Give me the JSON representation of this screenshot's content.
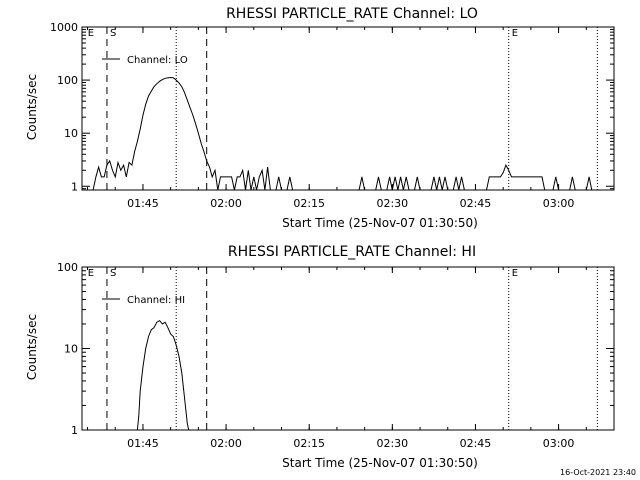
{
  "footer": {
    "timestamp": "16-Oct-2021 23:40"
  },
  "chart_data": [
    {
      "type": "line",
      "title": "RHESSI PARTICLE_RATE Channel: LO",
      "xlabel": "Start Time (25-Nov-07 01:30:50)",
      "ylabel": "Counts/sec",
      "y_scale": "log",
      "xlim": [
        "01:34",
        "03:10"
      ],
      "ylim": [
        0.85,
        1000
      ],
      "x_ticks": [
        "01:45",
        "02:00",
        "02:15",
        "02:30",
        "02:45",
        "03:00"
      ],
      "y_ticks": [
        "1",
        "10",
        "100",
        "1000"
      ],
      "legend": {
        "label": "Channel: LO",
        "placement": "top-left"
      },
      "markers": [
        {
          "label": "E",
          "time": "01:34:30",
          "style": "none"
        },
        {
          "label": "S",
          "time": "01:38:30",
          "style": "dashed"
        },
        {
          "label": "",
          "time": "01:51:00",
          "style": "dotted"
        },
        {
          "label": "",
          "time": "01:56:30",
          "style": "dashed"
        },
        {
          "label": "E",
          "time": "02:51:00",
          "style": "dotted"
        },
        {
          "label": "",
          "time": "03:07:00",
          "style": "dotted"
        }
      ],
      "series": [
        {
          "name": "Channel: LO",
          "points": [
            [
              "01:36:00",
              0.85
            ],
            [
              "01:36:30",
              1.5
            ],
            [
              "01:37:00",
              2.3
            ],
            [
              "01:37:30",
              1.5
            ],
            [
              "01:38:00",
              1.5
            ],
            [
              "01:38:30",
              2.5
            ],
            [
              "01:39:00",
              3.0
            ],
            [
              "01:39:30",
              2.0
            ],
            [
              "01:40:00",
              1.5
            ],
            [
              "01:40:30",
              2.8
            ],
            [
              "01:41:00",
              2.0
            ],
            [
              "01:41:30",
              2.5
            ],
            [
              "01:42:00",
              1.5
            ],
            [
              "01:42:30",
              2.8
            ],
            [
              "01:43:00",
              2.5
            ],
            [
              "01:43:30",
              4.5
            ],
            [
              "01:44:00",
              7.0
            ],
            [
              "01:44:30",
              12.0
            ],
            [
              "01:45:00",
              22.0
            ],
            [
              "01:45:30",
              35.0
            ],
            [
              "01:46:00",
              50.0
            ],
            [
              "01:46:30",
              62.0
            ],
            [
              "01:47:00",
              75.0
            ],
            [
              "01:47:30",
              85.0
            ],
            [
              "01:48:00",
              95.0
            ],
            [
              "01:48:30",
              102.0
            ],
            [
              "01:49:00",
              108.0
            ],
            [
              "01:49:30",
              110.0
            ],
            [
              "01:50:00",
              112.0
            ],
            [
              "01:50:30",
              110.0
            ],
            [
              "01:51:00",
              100.0
            ],
            [
              "01:51:30",
              88.0
            ],
            [
              "01:52:00",
              75.0
            ],
            [
              "01:52:30",
              58.0
            ],
            [
              "01:53:00",
              42.0
            ],
            [
              "01:53:30",
              30.0
            ],
            [
              "01:54:00",
              22.0
            ],
            [
              "01:54:30",
              15.0
            ],
            [
              "01:55:00",
              10.0
            ],
            [
              "01:55:30",
              6.5
            ],
            [
              "01:56:00",
              4.5
            ],
            [
              "01:56:30",
              3.0
            ],
            [
              "01:57:00",
              2.3
            ],
            [
              "01:57:30",
              1.5
            ],
            [
              "01:58:00",
              2.0
            ],
            [
              "01:58:30",
              0.85
            ],
            [
              "01:59:00",
              1.5
            ],
            [
              "01:59:30",
              1.5
            ],
            [
              "02:00:00",
              1.5
            ],
            [
              "02:00:30",
              1.5
            ],
            [
              "02:01:00",
              1.5
            ],
            [
              "02:01:30",
              0.85
            ],
            [
              "02:02:00",
              1.5
            ],
            [
              "02:02:30",
              1.5
            ],
            [
              "02:03:00",
              2.0
            ],
            [
              "02:03:30",
              0.85
            ],
            [
              "02:04:00",
              2.0
            ],
            [
              "02:04:30",
              0.85
            ],
            [
              "02:05:00",
              1.5
            ],
            [
              "02:05:30",
              0.85
            ],
            [
              "02:06:00",
              1.5
            ],
            [
              "02:06:30",
              2.0
            ],
            [
              "02:07:00",
              0.85
            ],
            [
              "02:07:30",
              2.3
            ],
            [
              "02:08:00",
              0.85
            ],
            [
              "02:09:00",
              0.85
            ],
            [
              "02:09:30",
              1.5
            ],
            [
              "02:10:00",
              0.85
            ],
            [
              "02:11:00",
              0.85
            ],
            [
              "02:11:30",
              1.5
            ],
            [
              "02:12:00",
              0.85
            ],
            [
              "02:24:00",
              0.85
            ],
            [
              "02:24:30",
              1.5
            ],
            [
              "02:25:00",
              0.85
            ],
            [
              "02:27:00",
              0.85
            ],
            [
              "02:27:30",
              1.5
            ],
            [
              "02:28:00",
              0.85
            ],
            [
              "02:29:00",
              0.85
            ],
            [
              "02:29:30",
              1.5
            ],
            [
              "02:30:00",
              0.85
            ],
            [
              "02:30:30",
              1.5
            ],
            [
              "02:31:00",
              0.85
            ],
            [
              "02:31:30",
              1.5
            ],
            [
              "02:32:00",
              0.85
            ],
            [
              "02:32:30",
              1.5
            ],
            [
              "02:33:00",
              0.85
            ],
            [
              "02:34:00",
              0.85
            ],
            [
              "02:34:30",
              1.5
            ],
            [
              "02:35:00",
              0.85
            ],
            [
              "02:37:00",
              0.85
            ],
            [
              "02:37:30",
              1.5
            ],
            [
              "02:38:00",
              0.85
            ],
            [
              "02:38:30",
              1.5
            ],
            [
              "02:39:00",
              0.85
            ],
            [
              "02:39:30",
              1.5
            ],
            [
              "02:40:00",
              0.85
            ],
            [
              "02:41:00",
              0.85
            ],
            [
              "02:41:30",
              1.5
            ],
            [
              "02:42:00",
              0.85
            ],
            [
              "02:42:30",
              1.5
            ],
            [
              "02:43:00",
              0.85
            ],
            [
              "02:47:00",
              0.85
            ],
            [
              "02:47:30",
              1.5
            ],
            [
              "02:48:00",
              1.5
            ],
            [
              "02:48:30",
              1.5
            ],
            [
              "02:49:00",
              1.5
            ],
            [
              "02:49:30",
              1.5
            ],
            [
              "02:50:00",
              1.8
            ],
            [
              "02:50:30",
              2.5
            ],
            [
              "02:51:00",
              2.0
            ],
            [
              "02:51:30",
              1.5
            ],
            [
              "02:52:00",
              1.5
            ],
            [
              "02:52:30",
              1.5
            ],
            [
              "02:53:00",
              1.5
            ],
            [
              "02:53:30",
              1.5
            ],
            [
              "02:54:00",
              1.5
            ],
            [
              "02:54:30",
              1.5
            ],
            [
              "02:55:00",
              1.5
            ],
            [
              "02:55:30",
              1.5
            ],
            [
              "02:56:00",
              1.5
            ],
            [
              "02:56:30",
              1.5
            ],
            [
              "02:57:00",
              1.5
            ],
            [
              "02:57:30",
              0.85
            ],
            [
              "02:59:00",
              0.85
            ],
            [
              "02:59:30",
              1.5
            ],
            [
              "03:00:00",
              0.85
            ],
            [
              "03:02:00",
              0.85
            ],
            [
              "03:02:30",
              1.5
            ],
            [
              "03:03:00",
              0.85
            ],
            [
              "03:05:00",
              0.85
            ],
            [
              "03:05:30",
              1.5
            ],
            [
              "03:06:00",
              0.85
            ]
          ]
        }
      ]
    },
    {
      "type": "line",
      "title": "RHESSI PARTICLE_RATE Channel: HI",
      "xlabel": "Start Time (25-Nov-07 01:30:50)",
      "ylabel": "Counts/sec",
      "y_scale": "log",
      "xlim": [
        "01:34",
        "03:10"
      ],
      "ylim": [
        1,
        100
      ],
      "x_ticks": [
        "01:45",
        "02:00",
        "02:15",
        "02:30",
        "02:45",
        "03:00"
      ],
      "y_ticks": [
        "1",
        "10",
        "100"
      ],
      "legend": {
        "label": "Channel: HI",
        "placement": "top-left"
      },
      "markers": [
        {
          "label": "E",
          "time": "01:34:30",
          "style": "none"
        },
        {
          "label": "S",
          "time": "01:38:30",
          "style": "dashed"
        },
        {
          "label": "",
          "time": "01:51:00",
          "style": "dotted"
        },
        {
          "label": "",
          "time": "01:56:30",
          "style": "dashed"
        },
        {
          "label": "E",
          "time": "02:51:00",
          "style": "dotted"
        },
        {
          "label": "",
          "time": "03:07:00",
          "style": "dotted"
        }
      ],
      "series": [
        {
          "name": "Channel: HI",
          "points": [
            [
              "01:44:00",
              0.9
            ],
            [
              "01:44:15",
              1.5
            ],
            [
              "01:44:30",
              3.0
            ],
            [
              "01:45:00",
              6.0
            ],
            [
              "01:45:30",
              10.0
            ],
            [
              "01:46:00",
              14.0
            ],
            [
              "01:46:30",
              17.0
            ],
            [
              "01:47:00",
              18.0
            ],
            [
              "01:47:30",
              21.0
            ],
            [
              "01:48:00",
              22.0
            ],
            [
              "01:48:30",
              20.0
            ],
            [
              "01:49:00",
              21.0
            ],
            [
              "01:49:30",
              18.0
            ],
            [
              "01:50:00",
              15.0
            ],
            [
              "01:50:30",
              14.0
            ],
            [
              "01:51:00",
              11.0
            ],
            [
              "01:51:30",
              8.0
            ],
            [
              "01:52:00",
              5.0
            ],
            [
              "01:52:30",
              2.5
            ],
            [
              "01:53:00",
              1.2
            ],
            [
              "01:53:15",
              0.9
            ]
          ]
        }
      ]
    }
  ]
}
